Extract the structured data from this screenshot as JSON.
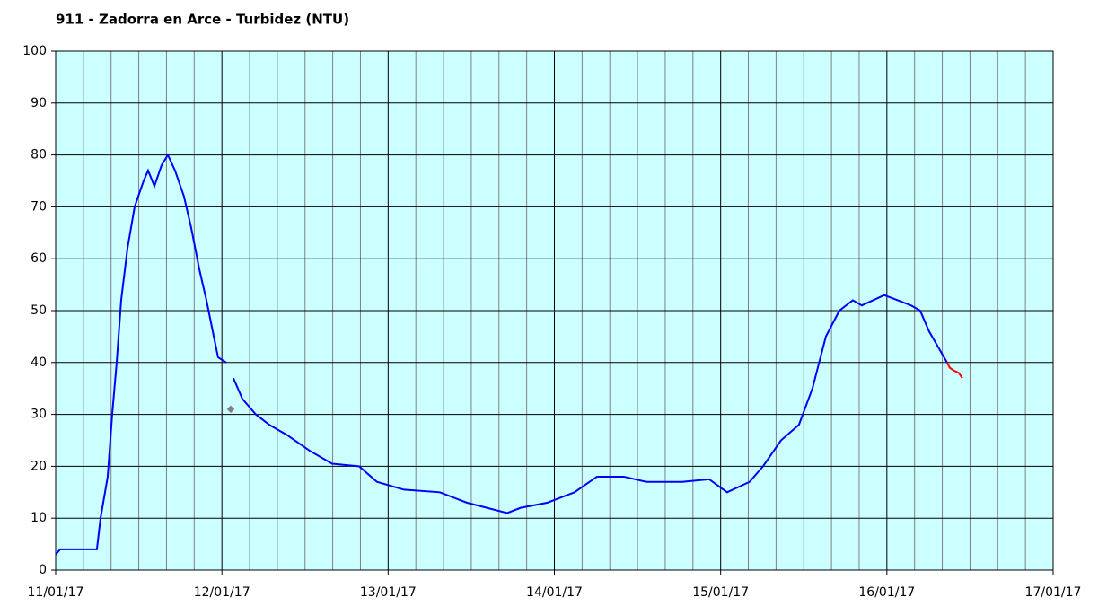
{
  "chart_data": {
    "type": "line",
    "title": "911 - Zadorra en Arce - Turbidez (NTU)",
    "xlim": [
      0,
      6
    ],
    "xticks": [
      {
        "value": 0,
        "label": "11/01/17"
      },
      {
        "value": 1,
        "label": "12/01/17"
      },
      {
        "value": 2,
        "label": "13/01/17"
      },
      {
        "value": 3,
        "label": "14/01/17"
      },
      {
        "value": 4,
        "label": "15/01/17"
      },
      {
        "value": 5,
        "label": "16/01/17"
      },
      {
        "value": 6,
        "label": "17/01/17"
      }
    ],
    "x_minor_per_major": 6,
    "ylim": [
      0,
      100
    ],
    "yticks": [
      0,
      10,
      20,
      30,
      40,
      50,
      60,
      70,
      80,
      90,
      100
    ],
    "grid": true,
    "plot_background": "#ccffff",
    "series": [
      {
        "color": "#0000ff",
        "type": "line",
        "x": [
          0,
          0.027,
          0.248,
          0.27,
          0.313,
          0.34,
          0.367,
          0.394,
          0.432,
          0.475,
          0.529,
          0.556,
          0.594,
          0.637,
          0.675,
          0.718,
          0.772,
          0.815,
          0.864,
          0.907,
          0.945,
          0.977,
          1.026,
          1.05,
          1.069,
          1.123,
          1.204,
          1.285,
          1.393,
          1.528,
          1.663,
          1.825,
          1.933,
          2.095,
          2.311,
          2.473,
          2.716,
          2.797,
          2.959,
          3.121,
          3.256,
          3.418,
          3.553,
          3.769,
          3.931,
          4.039,
          4.174,
          4.255,
          4.363,
          4.471,
          4.552,
          4.633,
          4.714,
          4.795,
          4.849,
          4.984,
          5.065,
          5.146,
          5.2,
          5.254,
          5.308,
          5.362
        ],
        "values": [
          3,
          4,
          4,
          10,
          18,
          30,
          40,
          52,
          62,
          70,
          75,
          77,
          74,
          78,
          80,
          77,
          72,
          66,
          58,
          52,
          46,
          41,
          40,
          null,
          37,
          33,
          30,
          28,
          26,
          23,
          20.5,
          20,
          17,
          15.5,
          15,
          13,
          11,
          12,
          13,
          15,
          18,
          18,
          17,
          17,
          17.5,
          15,
          17,
          20,
          25,
          28,
          35,
          45,
          50,
          52,
          51,
          53,
          52,
          51,
          50,
          46,
          43,
          40
        ]
      },
      {
        "color": "#ff0000",
        "type": "line",
        "x": [
          5.362,
          5.378,
          5.4,
          5.432,
          5.454
        ],
        "values": [
          40,
          39,
          38.5,
          38,
          37
        ]
      },
      {
        "color": "#808080",
        "type": "scatter",
        "x": [
          1.053
        ],
        "values": [
          31
        ]
      }
    ]
  }
}
